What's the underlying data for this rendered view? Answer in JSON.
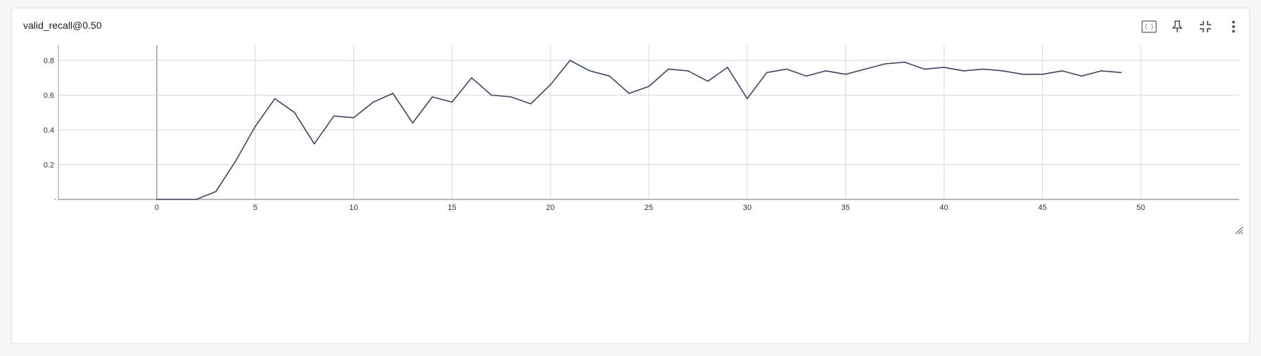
{
  "card": {
    "title": "valid_recall@0.50",
    "toolbar": [
      {
        "name": "fit-domain-button",
        "icon": "fit-domain-icon"
      },
      {
        "name": "pin-button",
        "icon": "pin-icon"
      },
      {
        "name": "collapse-button",
        "icon": "collapse-icon"
      },
      {
        "name": "more-options-button",
        "icon": "more-vert-icon"
      }
    ]
  },
  "colors": {
    "line": "#3a4660",
    "grid": "#d8d8d8",
    "axis": "#9e9e9e",
    "zero_line": "#9e9e9e"
  },
  "chart_data": {
    "type": "line",
    "title": "valid_recall@0.50",
    "xlim": [
      -5,
      55
    ],
    "ylim": [
      0,
      0.8
    ],
    "xticks": [
      0,
      5,
      10,
      15,
      20,
      25,
      30,
      35,
      40,
      45,
      50
    ],
    "xtick_labels": [
      "0",
      "5",
      "10",
      "15",
      "20",
      "25",
      "30",
      "35",
      "40",
      "45",
      "50"
    ],
    "yticks": [
      0,
      0.2,
      0.4,
      0.6,
      0.8
    ],
    "ytick_labels": [
      "",
      "0.2",
      "0.4",
      "0.6",
      "0.8"
    ],
    "grid": true,
    "series": [
      {
        "x": [
          0,
          1,
          2,
          3,
          4,
          5,
          6,
          7,
          8,
          9,
          10,
          11,
          12,
          13,
          14,
          15,
          16,
          17,
          18,
          19,
          20,
          21,
          22,
          23,
          24,
          25,
          26,
          27,
          28,
          29,
          30,
          31,
          32,
          33,
          34,
          35,
          36,
          37,
          38,
          39,
          40,
          41,
          42,
          43,
          44,
          45,
          46,
          47,
          48,
          49
        ],
        "values": [
          0,
          0,
          0,
          0.045,
          0.22,
          0.42,
          0.58,
          0.5,
          0.32,
          0.48,
          0.47,
          0.56,
          0.61,
          0.44,
          0.59,
          0.56,
          0.7,
          0.6,
          0.59,
          0.55,
          0.66,
          0.8,
          0.74,
          0.71,
          0.61,
          0.65,
          0.75,
          0.74,
          0.68,
          0.76,
          0.58,
          0.73,
          0.75,
          0.71,
          0.74,
          0.72,
          0.75,
          0.78,
          0.79,
          0.75,
          0.76,
          0.74,
          0.75,
          0.74,
          0.72,
          0.72,
          0.74,
          0.71,
          0.74,
          0.73
        ]
      }
    ]
  }
}
